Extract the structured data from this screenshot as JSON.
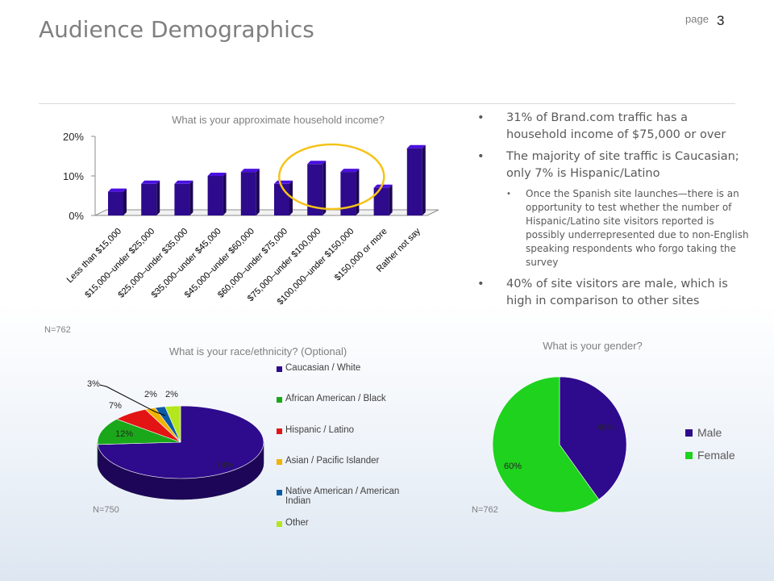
{
  "header": {
    "title": "Audience Demographics",
    "page_label": "page",
    "page_number": "3"
  },
  "bullets": {
    "b1": "31% of Brand.com traffic has a household income of $75,000 or over",
    "b2": "The majority of site traffic is Caucasian; only 7% is Hispanic/Latino",
    "b2_sub": "Once the Spanish site launches—there is an opportunity  to test whether the number  of Hispanic/Latino site visitors reported  is possibly underrepresented due to non-English speaking respondents who forgo taking the survey",
    "b3": "40% of site visitors are male, which is high in comparison to other sites"
  },
  "colors": {
    "bar": "#2e0a8c",
    "caucasian": "#2e0a8c",
    "black": "#1aa81a",
    "hispanic": "#e31414",
    "asian": "#f0b400",
    "native": "#0b5aa5",
    "other": "#b4e61e",
    "male": "#2e0a8c",
    "female": "#1ed21e",
    "highlight": "#f5c318"
  },
  "chart_data": [
    {
      "type": "bar",
      "title": "What is your approximate household income?",
      "categories": [
        "Less than $15,000",
        "$15,000–under $25,000",
        "$25,000–under $35,000",
        "$35,000–under $45,000",
        "$45,000–under $60,000",
        "$60,000–under $75,000",
        "$75,000–under $100,000",
        "$100,000–under $150,000",
        "$150,000 or more",
        "Rather not say"
      ],
      "values": [
        6,
        8,
        8,
        10,
        11,
        8,
        13,
        11,
        7,
        17
      ],
      "yticks": [
        "0%",
        "10%",
        "20%"
      ],
      "ylim": [
        0,
        20
      ],
      "n_label": "N=762"
    },
    {
      "type": "pie",
      "title": "What is your race/ethnicity? (Optional)",
      "labels": [
        "Caucasian / White",
        "African American / Black",
        "Hispanic / Latino",
        "Asian / Pacific Islander",
        "Native American / American Indian",
        "Other"
      ],
      "values": [
        74,
        12,
        7,
        2,
        2,
        3
      ],
      "value_labels": [
        "74%",
        "12%",
        "7%",
        "2%",
        "2%",
        "3%"
      ],
      "n_label": "N=750"
    },
    {
      "type": "pie",
      "title": "What is your gender?",
      "labels": [
        "Male",
        "Female"
      ],
      "values": [
        40,
        60
      ],
      "value_labels": [
        "40%",
        "60%"
      ],
      "n_label": "N=762"
    }
  ]
}
